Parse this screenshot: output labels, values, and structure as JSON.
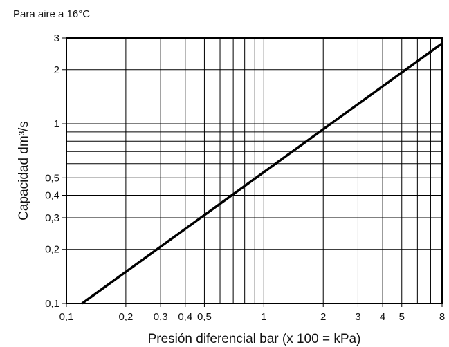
{
  "note": "Para aire a 16°C",
  "chart_data": {
    "type": "line",
    "xlabel": "Presión diferencial bar (x 100 = kPa)",
    "ylabel": "Capacidad dm³/s",
    "xscale": "log",
    "yscale": "log",
    "xlim": [
      0.1,
      8
    ],
    "ylim": [
      0.1,
      3
    ],
    "grid": true,
    "x_ticks": [
      {
        "value": 0.1,
        "label": "0,1"
      },
      {
        "value": 0.2,
        "label": "0,2"
      },
      {
        "value": 0.3,
        "label": "0,3"
      },
      {
        "value": 0.4,
        "label": "0,4"
      },
      {
        "value": 0.5,
        "label": "0,5"
      },
      {
        "value": 1,
        "label": "1"
      },
      {
        "value": 2,
        "label": "2"
      },
      {
        "value": 3,
        "label": "3"
      },
      {
        "value": 4,
        "label": "4"
      },
      {
        "value": 5,
        "label": "5"
      },
      {
        "value": 8,
        "label": "8"
      }
    ],
    "y_ticks": [
      {
        "value": 0.1,
        "label": "0,1"
      },
      {
        "value": 0.2,
        "label": "0,2"
      },
      {
        "value": 0.3,
        "label": "0,3"
      },
      {
        "value": 0.4,
        "label": "0,4"
      },
      {
        "value": 0.5,
        "label": "0,5"
      },
      {
        "value": 1,
        "label": "1"
      },
      {
        "value": 2,
        "label": "2"
      },
      {
        "value": 3,
        "label": "3"
      }
    ],
    "x_gridlines": [
      0.2,
      0.3,
      0.4,
      0.5,
      0.6,
      0.7,
      0.8,
      0.9,
      1,
      2,
      3,
      4,
      5,
      6,
      7
    ],
    "y_gridlines": [
      0.2,
      0.3,
      0.4,
      0.5,
      0.6,
      0.7,
      0.8,
      0.9,
      1,
      2
    ],
    "series": [
      {
        "points": [
          [
            0.12,
            0.1
          ],
          [
            8,
            2.8
          ]
        ]
      }
    ]
  }
}
